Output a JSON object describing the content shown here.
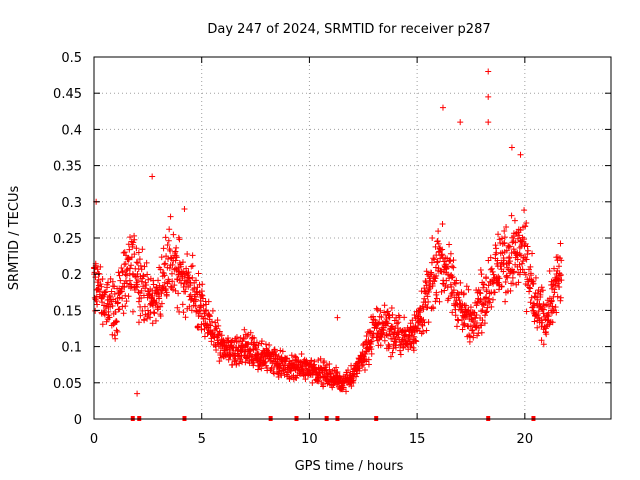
{
  "chart_data": {
    "type": "scatter",
    "title": "Day 247 of 2024, SRMTID for receiver p287",
    "xlabel": "GPS time / hours",
    "ylabel": "SRMTID / TECUs",
    "xlim": [
      0,
      24
    ],
    "ylim": [
      0,
      0.5
    ],
    "xticks": [
      0,
      5,
      10,
      15,
      20
    ],
    "yticks": [
      0,
      0.05,
      0.1,
      0.15,
      0.2,
      0.25,
      0.3,
      0.35,
      0.4,
      0.45,
      0.5
    ],
    "grid": true,
    "marker": "+",
    "color": "#ff0000",
    "zero_markers_x": [
      1.8,
      2.1,
      4.2,
      8.2,
      9.4,
      10.8,
      11.3,
      13.1,
      18.3,
      20.4
    ],
    "series": [
      {
        "name": "SRMTID",
        "profile": [
          [
            0.0,
            0.19
          ],
          [
            0.5,
            0.16
          ],
          [
            1.0,
            0.15
          ],
          [
            1.5,
            0.2
          ],
          [
            2.0,
            0.21
          ],
          [
            2.5,
            0.16
          ],
          [
            3.0,
            0.17
          ],
          [
            3.5,
            0.22
          ],
          [
            4.0,
            0.2
          ],
          [
            4.5,
            0.18
          ],
          [
            5.0,
            0.15
          ],
          [
            5.5,
            0.12
          ],
          [
            6.0,
            0.1
          ],
          [
            6.5,
            0.09
          ],
          [
            7.0,
            0.095
          ],
          [
            7.5,
            0.09
          ],
          [
            8.0,
            0.085
          ],
          [
            8.5,
            0.08
          ],
          [
            9.0,
            0.07
          ],
          [
            9.5,
            0.07
          ],
          [
            10.0,
            0.07
          ],
          [
            10.5,
            0.065
          ],
          [
            11.0,
            0.06
          ],
          [
            11.5,
            0.05
          ],
          [
            12.0,
            0.06
          ],
          [
            12.5,
            0.085
          ],
          [
            13.0,
            0.12
          ],
          [
            13.5,
            0.13
          ],
          [
            14.0,
            0.115
          ],
          [
            14.5,
            0.11
          ],
          [
            15.0,
            0.13
          ],
          [
            15.5,
            0.17
          ],
          [
            16.0,
            0.22
          ],
          [
            16.5,
            0.2
          ],
          [
            17.0,
            0.15
          ],
          [
            17.5,
            0.14
          ],
          [
            18.0,
            0.16
          ],
          [
            18.5,
            0.2
          ],
          [
            19.0,
            0.22
          ],
          [
            19.5,
            0.23
          ],
          [
            20.0,
            0.23
          ],
          [
            20.5,
            0.15
          ],
          [
            21.0,
            0.14
          ],
          [
            21.5,
            0.19
          ],
          [
            21.7,
            0.2
          ]
        ],
        "x_end": 21.7,
        "point_spacing_hours": 0.03,
        "outliers": [
          [
            18.3,
            0.48
          ],
          [
            18.3,
            0.445
          ],
          [
            16.2,
            0.43
          ],
          [
            17.0,
            0.41
          ],
          [
            18.3,
            0.41
          ],
          [
            19.8,
            0.365
          ],
          [
            19.4,
            0.375
          ],
          [
            2.7,
            0.335
          ],
          [
            0.1,
            0.3
          ],
          [
            4.2,
            0.29
          ],
          [
            11.3,
            0.14
          ],
          [
            2.0,
            0.035
          ]
        ]
      }
    ]
  }
}
